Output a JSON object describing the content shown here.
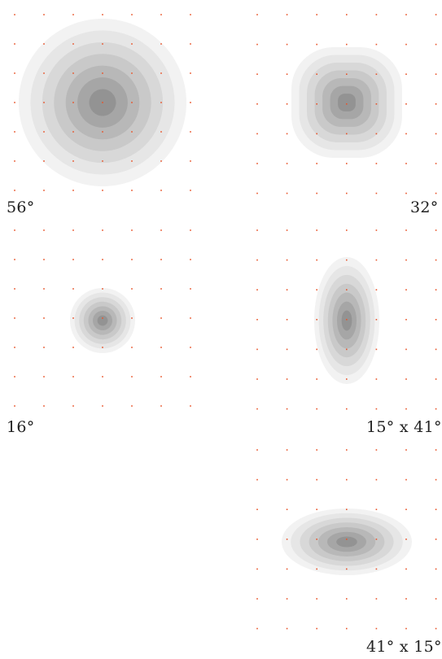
{
  "panels": [
    {
      "id": "p56",
      "label": "56°",
      "w": 56,
      "h": 56
    },
    {
      "id": "p32",
      "label": "32°",
      "w": 32,
      "h": 32
    },
    {
      "id": "p16",
      "label": "16°",
      "w": 16,
      "h": 16
    },
    {
      "id": "p15x41",
      "label": "15° x 41°",
      "w": 15,
      "h": 41
    },
    {
      "id": "p41x15",
      "label": "41° x 15°",
      "w": 41,
      "h": 15
    }
  ],
  "colors": {
    "dot": "#e8542a",
    "rings": [
      "#f2f2f2",
      "#e6e6e6",
      "#d8d8d8",
      "#c9c9c9",
      "#b8b8b8",
      "#a6a6a6",
      "#939393"
    ]
  }
}
